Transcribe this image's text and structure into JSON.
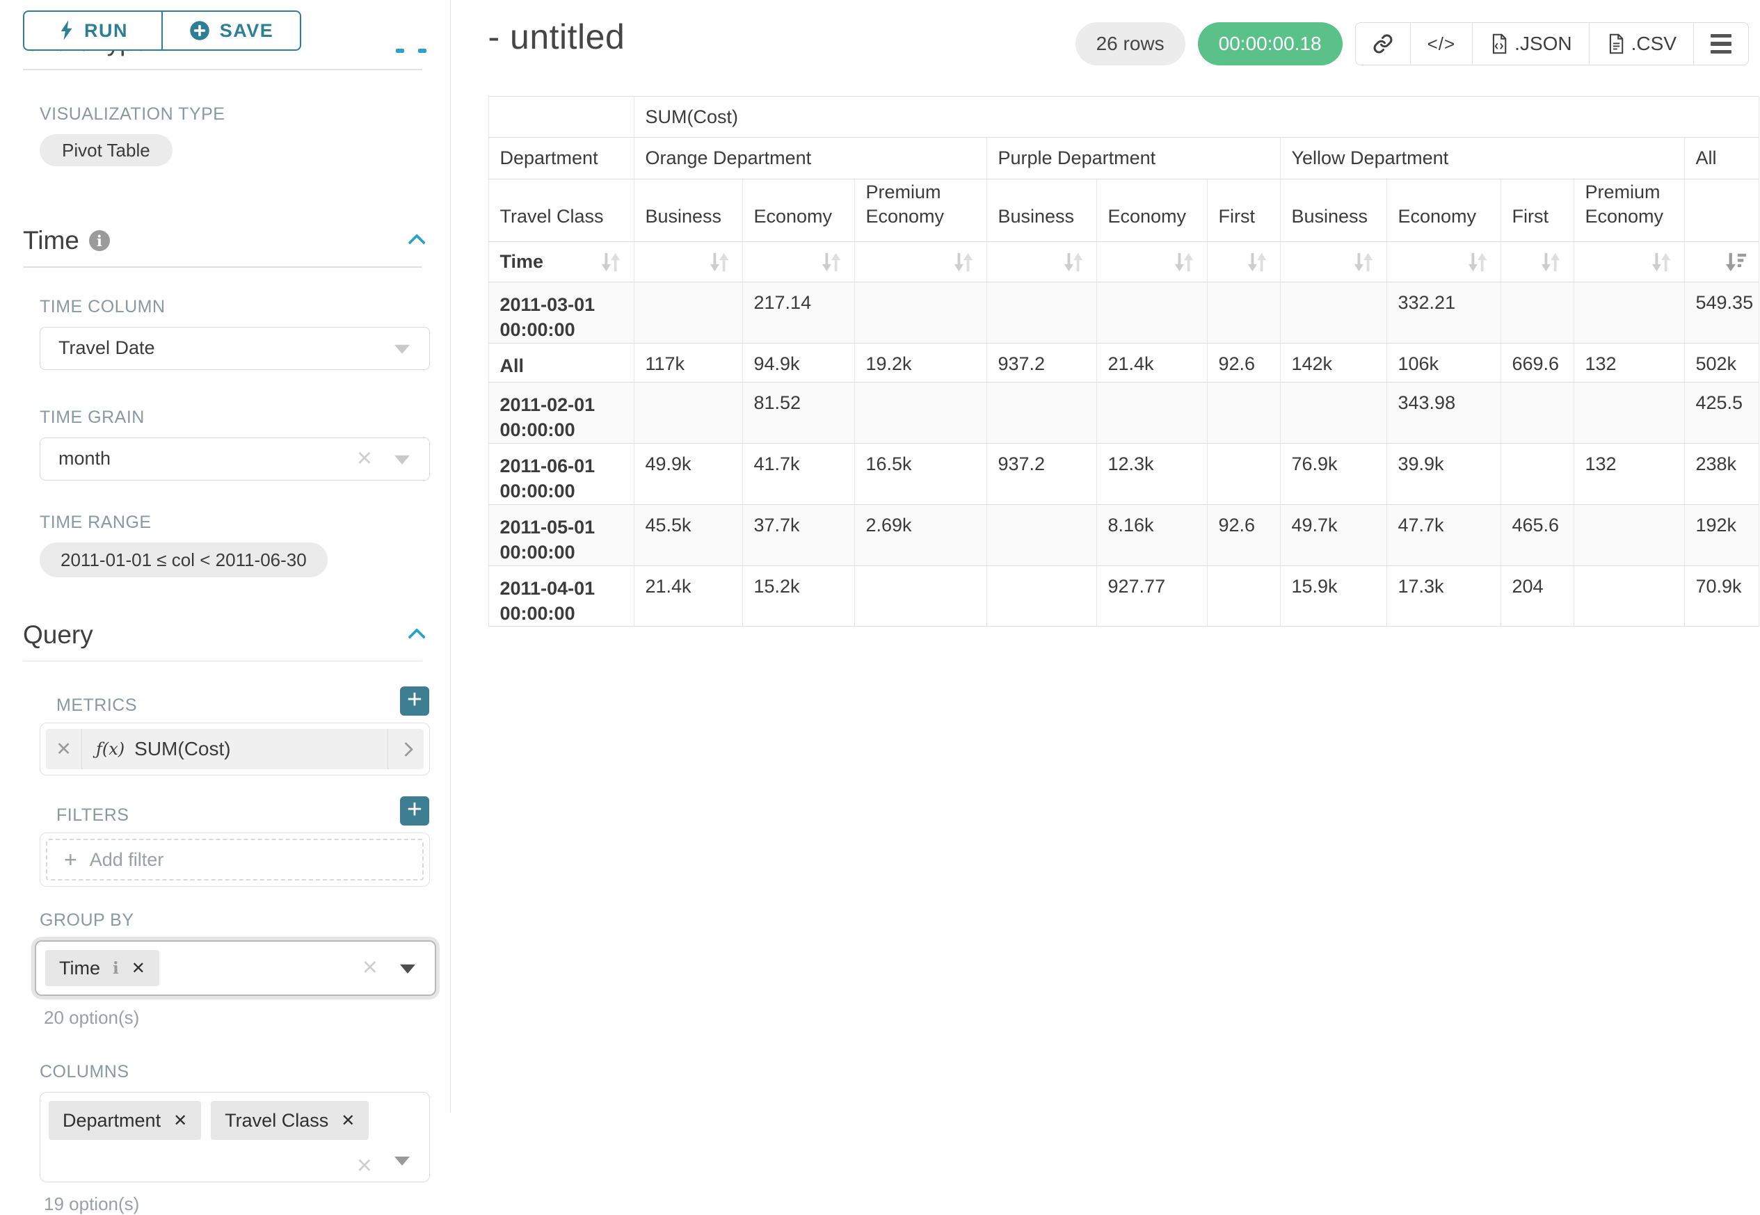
{
  "sidebar": {
    "run_label": "RUN",
    "save_label": "SAVE",
    "chart_type_heading": "Chart Type",
    "visualization_type_label": "VISUALIZATION TYPE",
    "visualization_type_value": "Pivot Table",
    "time_section": {
      "heading": "Time",
      "time_column_label": "TIME COLUMN",
      "time_column_value": "Travel Date",
      "time_grain_label": "TIME GRAIN",
      "time_grain_value": "month",
      "time_range_label": "TIME RANGE",
      "time_range_value": "2011-01-01 ≤ col < 2011-06-30"
    },
    "query_section": {
      "heading": "Query",
      "metrics_label": "METRICS",
      "metric_fx": "ƒ(x)",
      "metric_value": "SUM(Cost)",
      "filters_label": "FILTERS",
      "add_filter_label": "Add filter",
      "group_by_label": "GROUP BY",
      "group_by_values": [
        "Time"
      ],
      "group_by_options_hint": "20 option(s)",
      "columns_label": "COLUMNS",
      "columns_values": [
        "Department",
        "Travel Class"
      ],
      "columns_options_hint": "19 option(s)"
    }
  },
  "header": {
    "title": "- untitled",
    "row_count_badge": "26 rows",
    "timer_badge": "00:00:00.18",
    "code_glyph": "</>",
    "export_json_label": ".JSON",
    "export_csv_label": ".CSV"
  },
  "colors": {
    "accent_teal": "#2e7f96",
    "chevron_blue": "#2aa3c6",
    "success_green": "#5ac189",
    "plus_button_teal": "#3d7e93"
  },
  "chart_data": {
    "type": "table",
    "metric_header": "SUM(Cost)",
    "row_dimension": "Department",
    "sub_dimension": "Travel Class",
    "time_label": "Time",
    "col_groups": [
      {
        "label": "Orange Department",
        "cols": [
          "Business",
          "Economy",
          "Premium Economy"
        ]
      },
      {
        "label": "Purple Department",
        "cols": [
          "Business",
          "Economy",
          "First"
        ]
      },
      {
        "label": "Yellow Department",
        "cols": [
          "Business",
          "Economy",
          "First",
          "Premium Economy"
        ]
      },
      {
        "label": "All",
        "cols": [
          ""
        ]
      }
    ],
    "rows": [
      {
        "label": "2011-03-01 00:00:00",
        "values": [
          "",
          "217.14",
          "",
          "",
          "",
          "",
          "",
          "332.21",
          "",
          "",
          "549.35"
        ]
      },
      {
        "label": "All",
        "values": [
          "117k",
          "94.9k",
          "19.2k",
          "937.2",
          "21.4k",
          "92.6",
          "142k",
          "106k",
          "669.6",
          "132",
          "502k"
        ]
      },
      {
        "label": "2011-02-01 00:00:00",
        "values": [
          "",
          "81.52",
          "",
          "",
          "",
          "",
          "",
          "343.98",
          "",
          "",
          "425.5"
        ]
      },
      {
        "label": "2011-06-01 00:00:00",
        "values": [
          "49.9k",
          "41.7k",
          "16.5k",
          "937.2",
          "12.3k",
          "",
          "76.9k",
          "39.9k",
          "",
          "132",
          "238k"
        ]
      },
      {
        "label": "2011-05-01 00:00:00",
        "values": [
          "45.5k",
          "37.7k",
          "2.69k",
          "",
          "8.16k",
          "92.6",
          "49.7k",
          "47.7k",
          "465.6",
          "",
          "192k"
        ]
      },
      {
        "label": "2011-04-01 00:00:00",
        "values": [
          "21.4k",
          "15.2k",
          "",
          "",
          "927.77",
          "",
          "15.9k",
          "17.3k",
          "204",
          "",
          "70.9k"
        ]
      }
    ],
    "sorted_column": "All",
    "sort_direction": "descending"
  }
}
